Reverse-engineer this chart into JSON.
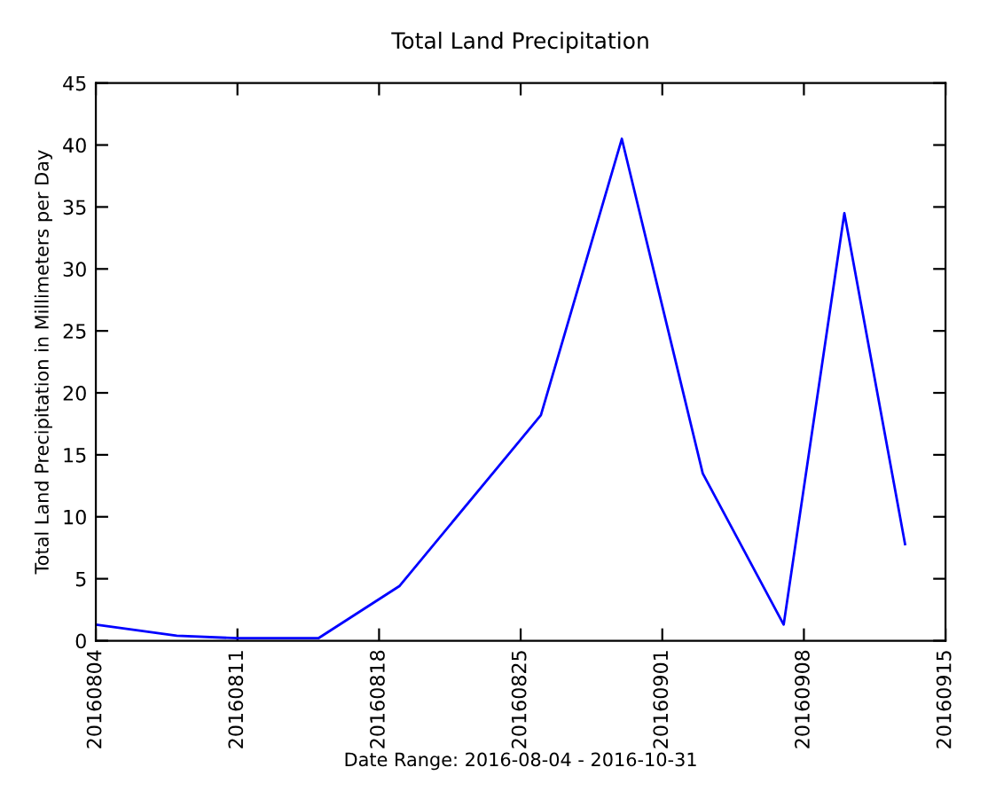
{
  "chart_data": {
    "type": "line",
    "title": "Total Land Precipitation",
    "xlabel": "Date Range: 2016-08-04 - 2016-10-31",
    "ylabel": "Total Land Precipitation in Millimeters per Day",
    "x": [
      "2016-08-04",
      "2016-08-08",
      "2016-08-11",
      "2016-08-15",
      "2016-08-19",
      "2016-08-26",
      "2016-08-30",
      "2016-09-03",
      "2016-09-07",
      "2016-09-10",
      "2016-09-13"
    ],
    "series": [
      {
        "color": "#0000ff",
        "values": [
          1.3,
          0.4,
          0.2,
          0.2,
          4.4,
          18.2,
          40.5,
          13.5,
          1.3,
          34.5,
          7.8
        ]
      }
    ],
    "xlim": [
      "2016-08-04",
      "2016-09-15"
    ],
    "xticks": [
      {
        "value": "2016-08-04",
        "label": "20160804"
      },
      {
        "value": "2016-08-11",
        "label": "20160811"
      },
      {
        "value": "2016-08-18",
        "label": "20160818"
      },
      {
        "value": "2016-08-25",
        "label": "20160825"
      },
      {
        "value": "2016-09-01",
        "label": "20160901"
      },
      {
        "value": "2016-09-08",
        "label": "20160908"
      },
      {
        "value": "2016-09-15",
        "label": "20160915"
      }
    ],
    "ylim": [
      0,
      45
    ],
    "yticks": [
      0,
      5,
      10,
      15,
      20,
      25,
      30,
      35,
      40,
      45
    ],
    "grid": false,
    "legend": false,
    "marker": "none",
    "line_style": "solid"
  }
}
